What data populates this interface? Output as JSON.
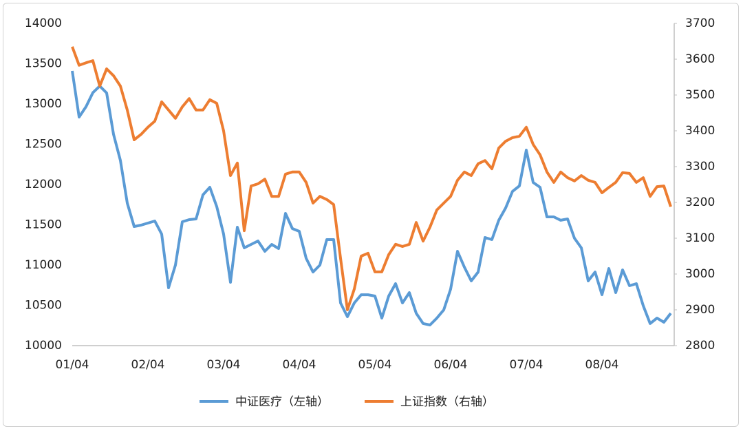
{
  "chart_data": {
    "type": "line",
    "categories": [
      "01/04",
      null,
      null,
      null,
      null,
      null,
      null,
      null,
      null,
      null,
      null,
      "02/04",
      null,
      null,
      null,
      null,
      null,
      null,
      null,
      null,
      null,
      null,
      "03/04",
      null,
      null,
      null,
      null,
      null,
      null,
      null,
      null,
      null,
      null,
      "04/04",
      null,
      null,
      null,
      null,
      null,
      null,
      null,
      null,
      null,
      null,
      "05/04",
      null,
      null,
      null,
      null,
      null,
      null,
      null,
      null,
      null,
      null,
      "06/04",
      null,
      null,
      null,
      null,
      null,
      null,
      null,
      null,
      null,
      null,
      "07/04",
      null,
      null,
      null,
      null,
      null,
      null,
      null,
      null,
      null,
      null,
      "08/04",
      null,
      null,
      null,
      null,
      null,
      null,
      null,
      null,
      null,
      null
    ],
    "series": [
      {
        "name": "中证医疗（左轴）",
        "color": "#5b9bd5",
        "axis": "y",
        "values": [
          13410,
          12838,
          12966,
          13140,
          13222,
          13137,
          12624,
          12299,
          11769,
          11479,
          11496,
          11521,
          11547,
          11385,
          10718,
          11000,
          11538,
          11564,
          11573,
          11872,
          11966,
          11727,
          11385,
          10786,
          11470,
          11214,
          11256,
          11299,
          11171,
          11256,
          11205,
          11641,
          11453,
          11419,
          11085,
          10914,
          11000,
          11316,
          11316,
          10530,
          10359,
          10530,
          10632,
          10632,
          10615,
          10342,
          10615,
          10769,
          10530,
          10658,
          10402,
          10274,
          10256,
          10342,
          10444,
          10701,
          11171,
          10974,
          10803,
          10914,
          11342,
          11316,
          11556,
          11709,
          11915,
          11983,
          12427,
          12026,
          11966,
          11598,
          11598,
          11556,
          11573,
          11333,
          11214,
          10803,
          10914,
          10632,
          10957,
          10658,
          10940,
          10744,
          10769,
          10496,
          10274,
          10342,
          10291,
          10402
        ]
      },
      {
        "name": "上证指数（右轴）",
        "color": "#ed7d31",
        "axis": "y2",
        "values": [
          3635,
          3583,
          3590,
          3596,
          3525,
          3573,
          3554,
          3525,
          3458,
          3375,
          3390,
          3410,
          3427,
          3481,
          3458,
          3435,
          3467,
          3490,
          3458,
          3458,
          3487,
          3477,
          3400,
          3275,
          3310,
          3121,
          3246,
          3252,
          3265,
          3217,
          3217,
          3279,
          3285,
          3285,
          3256,
          3198,
          3217,
          3208,
          3194,
          3044,
          2900,
          2958,
          3050,
          3058,
          3006,
          3006,
          3054,
          3083,
          3077,
          3083,
          3144,
          3092,
          3131,
          3179,
          3198,
          3217,
          3262,
          3285,
          3275,
          3308,
          3317,
          3294,
          3352,
          3371,
          3381,
          3385,
          3410,
          3362,
          3333,
          3285,
          3256,
          3285,
          3269,
          3260,
          3275,
          3262,
          3256,
          3227,
          3242,
          3256,
          3283,
          3281,
          3256,
          3269,
          3217,
          3244,
          3246,
          3188
        ]
      }
    ],
    "ylim": [
      10000,
      14000
    ],
    "yticks": [
      10000,
      10500,
      11000,
      11500,
      12000,
      12500,
      13000,
      13500,
      14000
    ],
    "y2lim": [
      2800,
      3700
    ],
    "y2ticks": [
      2800,
      2900,
      3000,
      3100,
      3200,
      3300,
      3400,
      3500,
      3600,
      3700
    ],
    "grid": false,
    "legend": "bottom"
  }
}
